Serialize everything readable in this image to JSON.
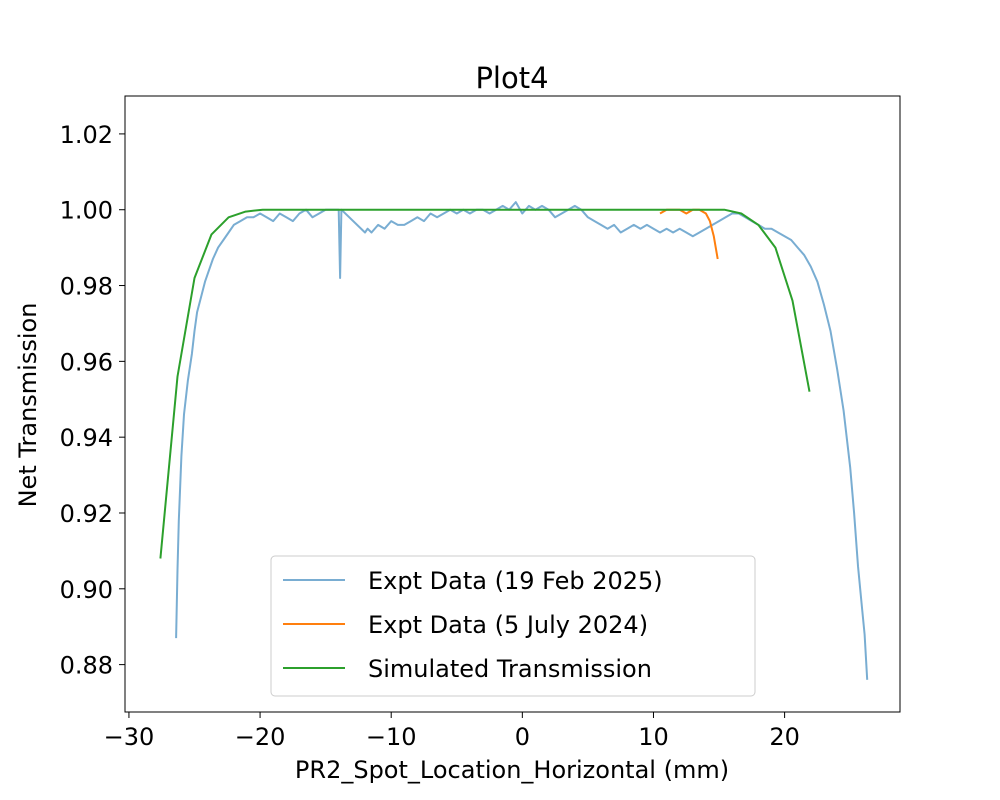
{
  "chart_data": {
    "type": "line",
    "title": "Plot4",
    "xlabel": "PR2_Spot_Location_Horizontal (mm)",
    "ylabel": "Net Transmission",
    "xlim": [
      -30.3,
      28.8
    ],
    "ylim": [
      0.8675,
      1.03
    ],
    "x_ticks": [
      -30,
      -20,
      -10,
      0,
      10,
      20
    ],
    "x_tick_labels": [
      "−30",
      "−20",
      "−10",
      "0",
      "10",
      "20"
    ],
    "y_ticks": [
      0.88,
      0.9,
      0.92,
      0.94,
      0.96,
      0.98,
      1.0,
      1.02
    ],
    "y_tick_labels": [
      "0.88",
      "0.90",
      "0.92",
      "0.94",
      "0.96",
      "0.98",
      "1.00",
      "1.02"
    ],
    "grid": false,
    "legend_position": "lower-center",
    "series": [
      {
        "name": "Expt Data (19 Feb 2025)",
        "color": "#1f77b4",
        "opacity": 0.6,
        "x": [
          -26.4,
          -26.3,
          -26.2,
          -26.0,
          -25.8,
          -25.5,
          -25.2,
          -25.0,
          -24.8,
          -24.5,
          -24.2,
          -24.0,
          -23.6,
          -23.2,
          -22.8,
          -22.4,
          -22.0,
          -21.5,
          -21.0,
          -20.5,
          -20.0,
          -19.5,
          -19.0,
          -18.5,
          -18.0,
          -17.5,
          -17.0,
          -16.5,
          -16.0,
          -15.5,
          -15.0,
          -14.5,
          -14.0,
          -13.9,
          -13.8,
          -12.0,
          -11.8,
          -11.5,
          -11.0,
          -10.5,
          -10.0,
          -9.5,
          -9.0,
          -8.5,
          -8.0,
          -7.5,
          -7.0,
          -6.5,
          -6.0,
          -5.5,
          -5.0,
          -4.5,
          -4.0,
          -3.5,
          -3.0,
          -2.5,
          -2.0,
          -1.5,
          -1.0,
          -0.5,
          0.0,
          0.5,
          1.0,
          1.5,
          2.0,
          2.5,
          3.0,
          3.5,
          4.0,
          4.5,
          5.0,
          5.5,
          6.0,
          6.5,
          7.0,
          7.5,
          8.0,
          8.5,
          9.0,
          9.5,
          10.0,
          10.5,
          11.0,
          11.5,
          12.0,
          12.5,
          13.0,
          13.5,
          14.0,
          14.5,
          15.0,
          15.5,
          16.0,
          16.5,
          17.0,
          17.5,
          18.0,
          18.5,
          19.0,
          19.5,
          20.0,
          20.5,
          21.0,
          21.5,
          22.0,
          22.5,
          23.0,
          23.5,
          24.0,
          24.5,
          25.0,
          25.3,
          25.6,
          25.9,
          26.1,
          26.3
        ],
        "y": [
          0.887,
          0.905,
          0.918,
          0.935,
          0.946,
          0.955,
          0.962,
          0.968,
          0.973,
          0.977,
          0.981,
          0.983,
          0.987,
          0.99,
          0.992,
          0.994,
          0.996,
          0.997,
          0.998,
          0.998,
          0.999,
          0.998,
          0.997,
          0.999,
          0.998,
          0.997,
          0.999,
          1.0,
          0.998,
          0.999,
          1.0,
          1.0,
          1.0,
          0.982,
          1.0,
          0.994,
          0.995,
          0.994,
          0.996,
          0.995,
          0.997,
          0.996,
          0.996,
          0.997,
          0.998,
          0.997,
          0.999,
          0.998,
          0.999,
          1.0,
          0.999,
          1.0,
          0.999,
          1.0,
          1.0,
          0.999,
          1.0,
          1.001,
          1.0,
          1.002,
          0.999,
          1.001,
          1.0,
          1.001,
          1.0,
          0.998,
          0.999,
          1.0,
          1.001,
          1.0,
          0.998,
          0.997,
          0.996,
          0.995,
          0.996,
          0.994,
          0.995,
          0.996,
          0.995,
          0.996,
          0.995,
          0.994,
          0.995,
          0.994,
          0.995,
          0.994,
          0.993,
          0.994,
          0.995,
          0.996,
          0.997,
          0.998,
          0.999,
          0.999,
          0.998,
          0.997,
          0.996,
          0.995,
          0.995,
          0.994,
          0.993,
          0.992,
          0.99,
          0.988,
          0.985,
          0.981,
          0.975,
          0.968,
          0.958,
          0.947,
          0.932,
          0.92,
          0.906,
          0.895,
          0.888,
          0.876
        ]
      },
      {
        "name": "Expt Data (5 July 2024)",
        "color": "#ff7f0e",
        "opacity": 1,
        "x": [
          10.5,
          11.0,
          11.5,
          12.0,
          12.5,
          13.0,
          13.5,
          14.0,
          14.3,
          14.6,
          14.9
        ],
        "y": [
          0.999,
          1.0,
          1.0,
          1.0,
          0.999,
          1.0,
          1.0,
          0.999,
          0.997,
          0.993,
          0.987
        ]
      },
      {
        "name": "Simulated Transmission",
        "color": "#2ca02c",
        "opacity": 1,
        "x": [
          -27.6,
          -26.3,
          -25.0,
          -23.7,
          -22.4,
          -21.1,
          -19.8,
          -18.5,
          -10.0,
          0.0,
          10.0,
          15.4,
          16.7,
          18.0,
          19.3,
          20.6,
          21.9
        ],
        "y": [
          0.908,
          0.956,
          0.982,
          0.9935,
          0.998,
          0.9995,
          1.0,
          1.0,
          1.0,
          1.0,
          1.0,
          1.0,
          0.999,
          0.996,
          0.99,
          0.976,
          0.952
        ]
      }
    ]
  }
}
